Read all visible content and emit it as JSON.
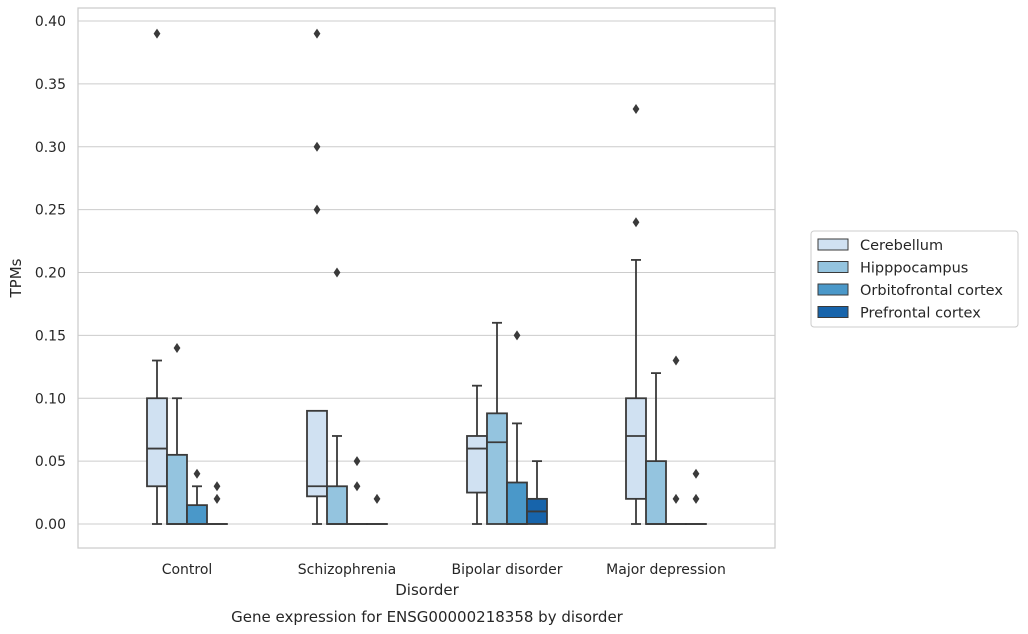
{
  "chart_data": {
    "type": "box",
    "title": "",
    "caption": "Gene expression for ENSG00000218358 by disorder",
    "xlabel": "Disorder",
    "ylabel": "TPMs",
    "ylim": [
      -0.019,
      0.41
    ],
    "yticks": [
      "0.00",
      "0.05",
      "0.10",
      "0.15",
      "0.20",
      "0.25",
      "0.30",
      "0.35",
      "0.40"
    ],
    "ytick_values": [
      0,
      0.05,
      0.1,
      0.15,
      0.2,
      0.25,
      0.3,
      0.35,
      0.4
    ],
    "categories": [
      "Control",
      "Schizophrenia",
      "Bipolar disorder",
      "Major depression"
    ],
    "grid": true,
    "legend_placement": "center-right outside",
    "series": [
      {
        "name": "Cerebellum",
        "color": "#d0e1f2",
        "boxes": [
          {
            "wlow": 0.0,
            "q1": 0.03,
            "median": 0.06,
            "q3": 0.1,
            "whigh": 0.13,
            "outliers": [
              0.39
            ]
          },
          {
            "wlow": 0.0,
            "q1": 0.022,
            "median": 0.03,
            "q3": 0.09,
            "whigh": 0.09,
            "outliers": [
              0.39,
              0.3,
              0.25
            ]
          },
          {
            "wlow": 0.0,
            "q1": 0.025,
            "median": 0.06,
            "q3": 0.07,
            "whigh": 0.11,
            "outliers": []
          },
          {
            "wlow": 0.0,
            "q1": 0.02,
            "median": 0.07,
            "q3": 0.1,
            "whigh": 0.21,
            "outliers": [
              0.33,
              0.24
            ]
          }
        ]
      },
      {
        "name": "Hipppocampus",
        "color": "#94c4df",
        "boxes": [
          {
            "wlow": 0.0,
            "q1": 0.0,
            "median": 0.0,
            "q3": 0.055,
            "whigh": 0.1,
            "outliers": [
              0.14
            ]
          },
          {
            "wlow": 0.0,
            "q1": 0.0,
            "median": 0.0,
            "q3": 0.03,
            "whigh": 0.07,
            "outliers": [
              0.2
            ]
          },
          {
            "wlow": 0.0,
            "q1": 0.0,
            "median": 0.065,
            "q3": 0.088,
            "whigh": 0.16,
            "outliers": []
          },
          {
            "wlow": 0.0,
            "q1": 0.0,
            "median": 0.0,
            "q3": 0.05,
            "whigh": 0.12,
            "outliers": []
          }
        ]
      },
      {
        "name": "Orbitofrontal cortex",
        "color": "#4a98c9",
        "boxes": [
          {
            "wlow": 0.0,
            "q1": 0.0,
            "median": 0.0,
            "q3": 0.015,
            "whigh": 0.03,
            "outliers": [
              0.04
            ]
          },
          {
            "wlow": 0.0,
            "q1": 0.0,
            "median": 0.0,
            "q3": 0.0,
            "whigh": 0.0,
            "outliers": [
              0.05,
              0.03
            ]
          },
          {
            "wlow": 0.0,
            "q1": 0.0,
            "median": 0.0,
            "q3": 0.033,
            "whigh": 0.08,
            "outliers": [
              0.15
            ]
          },
          {
            "wlow": 0.0,
            "q1": 0.0,
            "median": 0.0,
            "q3": 0.0,
            "whigh": 0.0,
            "outliers": [
              0.13,
              0.02
            ]
          }
        ]
      },
      {
        "name": "Prefrontal cortex",
        "color": "#1764ab",
        "boxes": [
          {
            "wlow": 0.0,
            "q1": 0.0,
            "median": 0.0,
            "q3": 0.0,
            "whigh": 0.0,
            "outliers": [
              0.03,
              0.02
            ]
          },
          {
            "wlow": 0.0,
            "q1": 0.0,
            "median": 0.0,
            "q3": 0.0,
            "whigh": 0.0,
            "outliers": [
              0.02
            ]
          },
          {
            "wlow": 0.0,
            "q1": 0.0,
            "median": 0.01,
            "q3": 0.02,
            "whigh": 0.05,
            "outliers": []
          },
          {
            "wlow": 0.0,
            "q1": 0.0,
            "median": 0.0,
            "q3": 0.0,
            "whigh": 0.0,
            "outliers": [
              0.04,
              0.02
            ]
          }
        ]
      }
    ]
  }
}
